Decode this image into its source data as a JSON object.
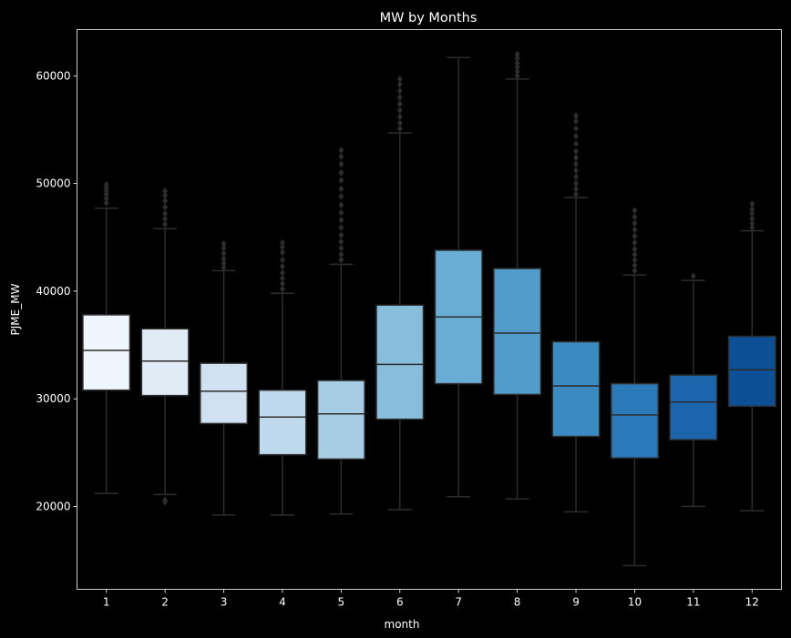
{
  "chart_data": {
    "type": "box",
    "title": "MW by Months",
    "xlabel": "month",
    "ylabel": "PJME_MW",
    "categories": [
      "1",
      "2",
      "3",
      "4",
      "5",
      "6",
      "7",
      "8",
      "9",
      "10",
      "11",
      "12"
    ],
    "ylim": [
      12300,
      64300
    ],
    "yticks": [
      20000,
      30000,
      40000,
      50000,
      60000
    ],
    "ytick_labels": [
      "20000",
      "30000",
      "40000",
      "50000",
      "60000"
    ],
    "grid": false,
    "legend": "none",
    "colors": {
      "background": "#000000",
      "axes_edge": "#ffffff",
      "text": "#ffffff",
      "box_line": "#2d2d2d",
      "box_fills": [
        "#eef5fc",
        "#e0ebf6",
        "#d0e1f2",
        "#bed8ec",
        "#a6cde3",
        "#88bedc",
        "#6aaed6",
        "#519ccb",
        "#3b8bc2",
        "#2a7ab9",
        "#1a65ac",
        "#0d4f94"
      ]
    },
    "boxes": [
      {
        "month": "1",
        "whislo": 21200,
        "q1": 30800,
        "med": 34500,
        "q3": 37800,
        "whishi": 47700,
        "fliers": [
          48200,
          48600,
          49000,
          49300,
          49600,
          49900
        ]
      },
      {
        "month": "2",
        "whislo": 21100,
        "q1": 30300,
        "med": 33500,
        "q3": 36500,
        "whishi": 45800,
        "fliers": [
          20400,
          20600,
          46200,
          46700,
          47200,
          47800,
          48400,
          48900,
          49300
        ]
      },
      {
        "month": "3",
        "whislo": 19200,
        "q1": 27700,
        "med": 30700,
        "q3": 33300,
        "whishi": 41900,
        "fliers": [
          42200,
          42600,
          43000,
          43500,
          44000,
          44400
        ]
      },
      {
        "month": "4",
        "whislo": 19200,
        "q1": 24800,
        "med": 28300,
        "q3": 30800,
        "whishi": 39800,
        "fliers": [
          40200,
          40700,
          41200,
          41700,
          42300,
          42900,
          43600,
          44100,
          44500
        ]
      },
      {
        "month": "5",
        "whislo": 19300,
        "q1": 24400,
        "med": 28600,
        "q3": 31700,
        "whishi": 42500,
        "fliers": [
          42900,
          43400,
          44000,
          44600,
          45200,
          45900,
          46600,
          47300,
          48000,
          48800,
          49500,
          50300,
          51000,
          51800,
          52500,
          53100
        ]
      },
      {
        "month": "6",
        "whislo": 19700,
        "q1": 28100,
        "med": 33200,
        "q3": 38700,
        "whishi": 54700,
        "fliers": [
          55100,
          55600,
          56200,
          56800,
          57400,
          58000,
          58600,
          59200,
          59700
        ]
      },
      {
        "month": "7",
        "whislo": 20900,
        "q1": 31400,
        "med": 37600,
        "q3": 43800,
        "whishi": 61700,
        "fliers": []
      },
      {
        "month": "8",
        "whislo": 20700,
        "q1": 30400,
        "med": 36100,
        "q3": 42100,
        "whishi": 59700,
        "fliers": [
          60000,
          60400,
          60800,
          61200,
          61600,
          62000
        ]
      },
      {
        "month": "9",
        "whislo": 19500,
        "q1": 26500,
        "med": 31200,
        "q3": 35300,
        "whishi": 48700,
        "fliers": [
          49000,
          49500,
          50000,
          50600,
          51200,
          51800,
          52400,
          53000,
          53700,
          54400,
          55100,
          55800,
          56300
        ]
      },
      {
        "month": "10",
        "whislo": 14500,
        "q1": 24500,
        "med": 28500,
        "q3": 31400,
        "whishi": 41500,
        "fliers": [
          41900,
          42400,
          42900,
          43400,
          43900,
          44500,
          45100,
          45700,
          46300,
          46900,
          47500
        ]
      },
      {
        "month": "11",
        "whislo": 20000,
        "q1": 26200,
        "med": 29700,
        "q3": 32200,
        "whishi": 41000,
        "fliers": [
          41400
        ]
      },
      {
        "month": "12",
        "whislo": 19600,
        "q1": 29300,
        "med": 32700,
        "q3": 35800,
        "whishi": 45600,
        "fliers": [
          45900,
          46300,
          46700,
          47200,
          47600,
          48100
        ]
      }
    ]
  }
}
